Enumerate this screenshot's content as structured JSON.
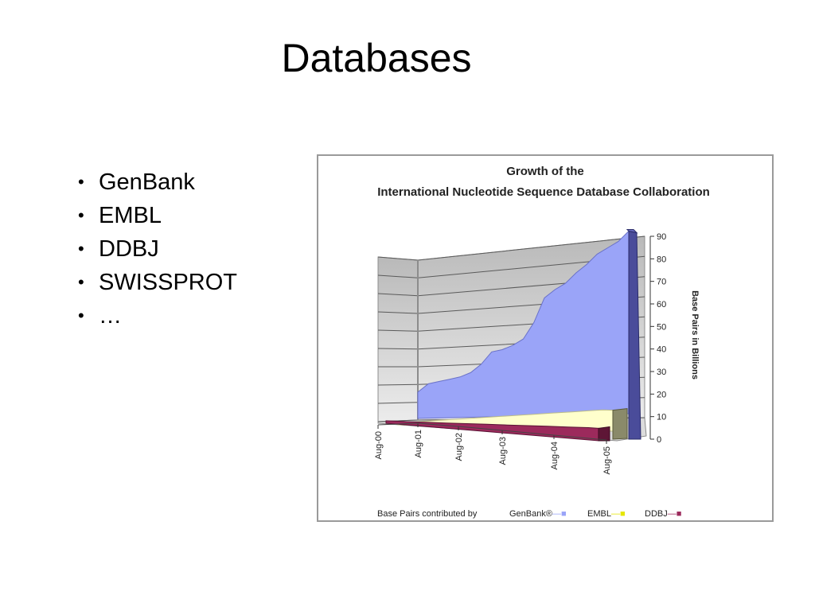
{
  "slide": {
    "title": "Databases",
    "bullet_symbol": "•",
    "bullets": [
      "GenBank",
      "EMBL",
      "DDBJ",
      "SWISSPROT",
      "…"
    ]
  },
  "chart_data": {
    "type": "area",
    "title": "Growth of the",
    "subtitle": "International Nucleotide Sequence Database Collaboration",
    "xlabel": "",
    "ylabel": "Base Pairs in Billions",
    "categories": [
      "Aug-00",
      "Aug-01",
      "Aug-02",
      "Aug-03",
      "Aug-04",
      "Aug-05"
    ],
    "x": [
      2000.58,
      2000.8,
      2001.0,
      2001.25,
      2001.5,
      2001.75,
      2002.0,
      2002.25,
      2002.5,
      2002.75,
      2003.0,
      2003.25,
      2003.5,
      2003.75,
      2004.0,
      2004.25,
      2004.5,
      2004.75,
      2005.0,
      2005.25,
      2005.5,
      2005.58
    ],
    "ylim": [
      0,
      90
    ],
    "yticks": [
      0,
      10,
      20,
      30,
      40,
      50,
      60,
      70,
      80,
      90
    ],
    "series": [
      {
        "name": "GenBank®",
        "color": "#9aa4f8",
        "values": [
          12,
          13,
          17,
          18,
          19,
          20,
          22,
          26,
          32,
          33,
          35,
          38,
          46,
          58,
          62,
          65,
          70,
          74,
          79,
          82,
          85,
          90
        ]
      },
      {
        "name": "EMBL",
        "color": "#ffffcc",
        "values": [
          1,
          1.5,
          2,
          2.5,
          3,
          3.5,
          4,
          4.5,
          5,
          5.5,
          6,
          6.5,
          7,
          7.5,
          8,
          8.5,
          9,
          9.5,
          10,
          10.5,
          11,
          11
        ]
      },
      {
        "name": "DDBJ",
        "color": "#9c2a5c",
        "values": [
          0.5,
          0.8,
          1,
          1.3,
          1.6,
          1.9,
          2.2,
          2.5,
          2.8,
          3.1,
          3.4,
          3.7,
          4,
          4.3,
          4.6,
          4.9,
          5.2,
          5.5,
          5.8,
          6.1,
          6.4,
          6.5
        ]
      }
    ],
    "legend": {
      "placement": "bottom",
      "prefix": "Base Pairs contributed by",
      "swatch_glyph": "—■"
    },
    "grid": true,
    "style": "3d"
  }
}
